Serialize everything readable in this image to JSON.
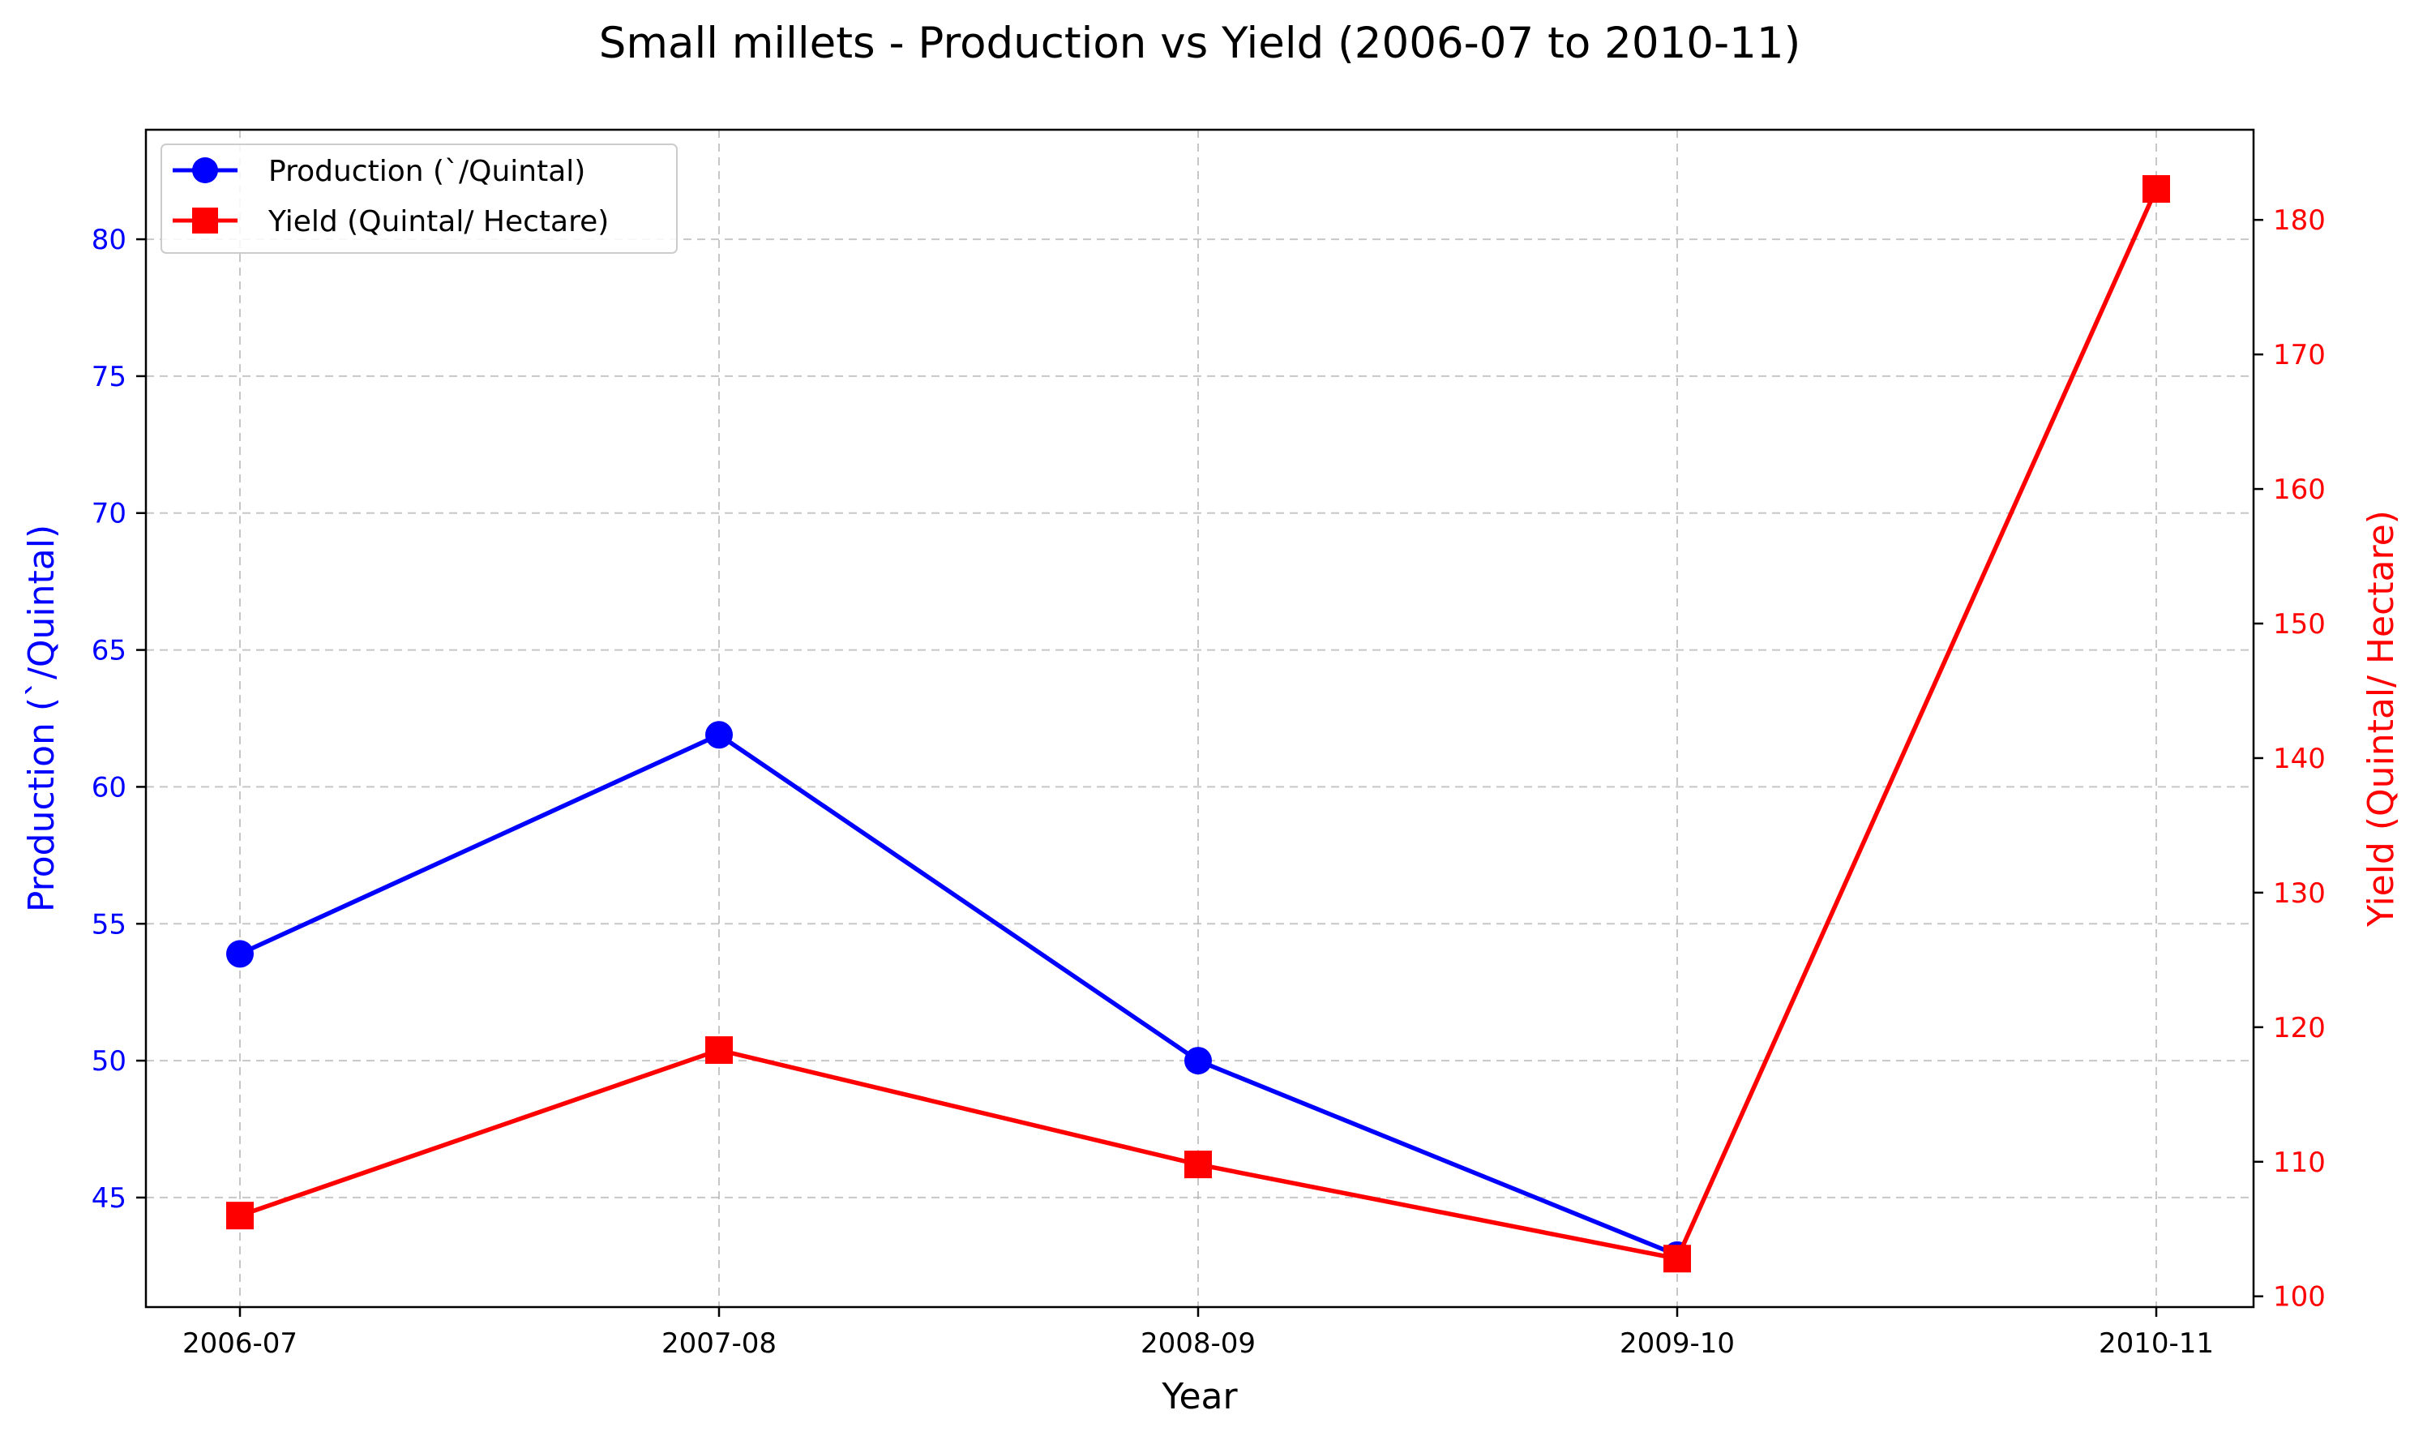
{
  "chart_data": {
    "type": "line",
    "title": "Small millets - Production vs Yield (2006-07 to 2010-11)",
    "xlabel": "Year",
    "ylabel_left": "Production (`/Quintal)",
    "ylabel_right": "Yield (Quintal/ Hectare)",
    "categories": [
      "2006-07",
      "2007-08",
      "2008-09",
      "2009-10",
      "2010-11"
    ],
    "ylim_left": [
      41,
      84
    ],
    "yticks_left": [
      45,
      50,
      55,
      60,
      65,
      70,
      75,
      80
    ],
    "ylim_right": [
      99.2,
      186.7
    ],
    "yticks_right": [
      100,
      110,
      120,
      130,
      140,
      150,
      160,
      170,
      180
    ],
    "grid": true,
    "legend_position": "top-left",
    "series": [
      {
        "name": "Production (`/Quintal)",
        "axis": "left",
        "color": "#0000ff",
        "marker": "circle",
        "values": [
          53.9,
          61.9,
          50.0,
          42.9,
          null
        ]
      },
      {
        "name": "Yield (Quintal/ Hectare)",
        "axis": "right",
        "color": "#ff0000",
        "marker": "square",
        "values": [
          106.0,
          118.3,
          109.8,
          102.8,
          182.3
        ]
      }
    ]
  }
}
